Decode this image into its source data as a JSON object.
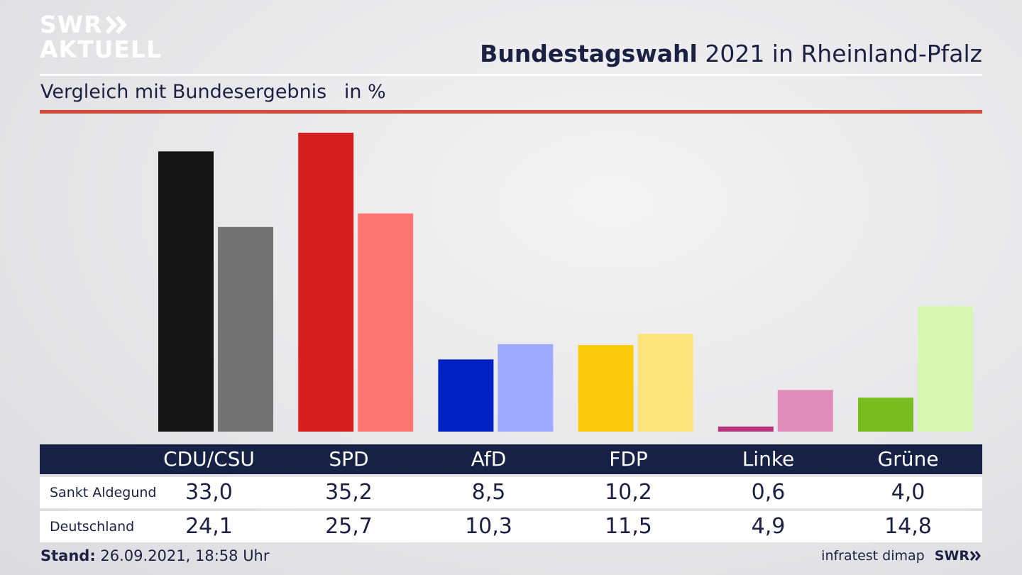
{
  "logo": {
    "line1": "SWR",
    "line2": "AKTUELL"
  },
  "header": {
    "title_bold": "Bundestagswahl",
    "title_rest": "2021 in Rheinland-Pfalz"
  },
  "subtitle": {
    "text": "Vergleich mit Bundesergebnis",
    "unit": "in %"
  },
  "chart_data": {
    "type": "bar",
    "categories": [
      "CDU/CSU",
      "SPD",
      "AfD",
      "FDP",
      "Linke",
      "Grüne"
    ],
    "series": [
      {
        "name": "Sankt Aldegund",
        "values": [
          33.0,
          35.2,
          8.5,
          10.2,
          0.6,
          4.0
        ]
      },
      {
        "name": "Deutschland",
        "values": [
          24.1,
          25.7,
          10.3,
          11.5,
          4.9,
          14.8
        ]
      }
    ],
    "colors": {
      "Sankt Aldegund": [
        "#141414",
        "#d71f1f",
        "#0021c6",
        "#fecb0a",
        "#b5337a",
        "#77bd1e"
      ],
      "Deutschland": [
        "#747371",
        "#ff7570",
        "#9fa9ff",
        "#fde379",
        "#e08cba",
        "#d5f7b1"
      ]
    },
    "ylim": [
      0,
      35.2
    ],
    "grid": false
  },
  "table": {
    "header": [
      "CDU/CSU",
      "SPD",
      "AfD",
      "FDP",
      "Linke",
      "Grüne"
    ],
    "rows": [
      {
        "label": "Sankt Aldegund",
        "values": [
          "33,0",
          "35,2",
          "8,5",
          "10,2",
          "0,6",
          "4,0"
        ]
      },
      {
        "label": "Deutschland",
        "values": [
          "24,1",
          "25,7",
          "10,3",
          "11,5",
          "4,9",
          "14,8"
        ]
      }
    ]
  },
  "footer": {
    "stand_label": "Stand:",
    "stand_value": "26.09.2021, 18:58 Uhr",
    "source": "infratest dimap",
    "brand": "SWR"
  },
  "colors": {
    "navy": "#152145",
    "accent_red": "#d24a3c"
  }
}
